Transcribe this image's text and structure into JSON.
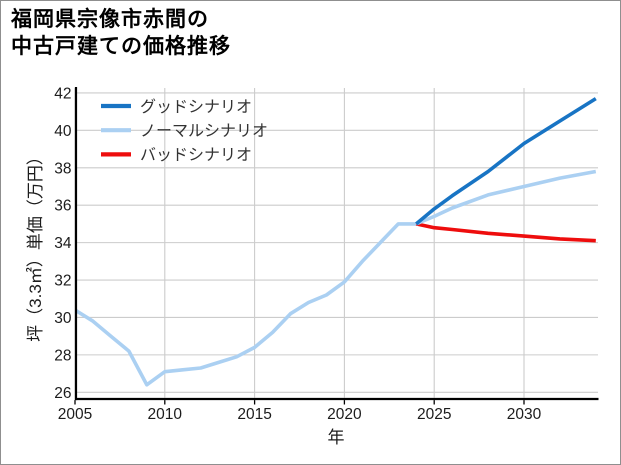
{
  "window": {
    "background": "#ffffff",
    "border_color": "#8f8f8f"
  },
  "title": {
    "line1": "福岡県宗像市赤間の",
    "line2": "中古戸建ての価格推移"
  },
  "chart_data": {
    "type": "line",
    "title": "福岡県宗像市赤間の中古戸建ての価格推移",
    "xlabel": "年",
    "ylabel": "坪（3.3㎡）単価（万円）",
    "xlim": [
      2005,
      2034.6
    ],
    "ylim": [
      25.6,
      42.3
    ],
    "xticks": [
      2005,
      2010,
      2015,
      2020,
      2025,
      2030
    ],
    "yticks": [
      26,
      28,
      30,
      32,
      34,
      36,
      38,
      40,
      42
    ],
    "grid": true,
    "grid_color": "#cccccc",
    "axis_color": "#000000",
    "tick_label_color": "#1c1c1c",
    "legend": {
      "position": "upper left",
      "text_color": "#333333",
      "entries": [
        {
          "label": "グッドシナリオ",
          "color": "#1874c4"
        },
        {
          "label": "ノーマルシナリオ",
          "color": "#abd0f2"
        },
        {
          "label": "バッドシナリオ",
          "color": "#ee0d0d"
        }
      ]
    },
    "series": [
      {
        "id": "price-history",
        "color": "#abd0f2",
        "x": [
          2005,
          2006,
          2007,
          2008,
          2009,
          2010,
          2011,
          2012,
          2013,
          2014,
          2015,
          2016,
          2017,
          2018,
          2019,
          2020,
          2021,
          2022,
          2023,
          2024
        ],
        "y": [
          30.4,
          29.8,
          29.0,
          28.2,
          26.4,
          27.1,
          27.2,
          27.3,
          27.6,
          27.9,
          28.4,
          29.2,
          30.2,
          30.8,
          31.2,
          31.9,
          33.0,
          34.0,
          35.0,
          35.0
        ]
      },
      {
        "id": "bad-scenario",
        "color": "#ee0d0d",
        "x": [
          2024,
          2025,
          2026,
          2028,
          2030,
          2032,
          2034
        ],
        "y": [
          35.0,
          34.8,
          34.7,
          34.5,
          34.35,
          34.2,
          34.1
        ]
      },
      {
        "id": "normal-scenario",
        "color": "#abd0f2",
        "x": [
          2024,
          2025,
          2026,
          2028,
          2030,
          2032,
          2034
        ],
        "y": [
          35.0,
          35.4,
          35.85,
          36.55,
          37.0,
          37.45,
          37.8
        ]
      },
      {
        "id": "good-scenario",
        "color": "#1874c4",
        "x": [
          2024,
          2025,
          2026,
          2028,
          2030,
          2032,
          2034
        ],
        "y": [
          35.0,
          35.8,
          36.5,
          37.8,
          39.3,
          40.5,
          41.7
        ]
      }
    ]
  }
}
